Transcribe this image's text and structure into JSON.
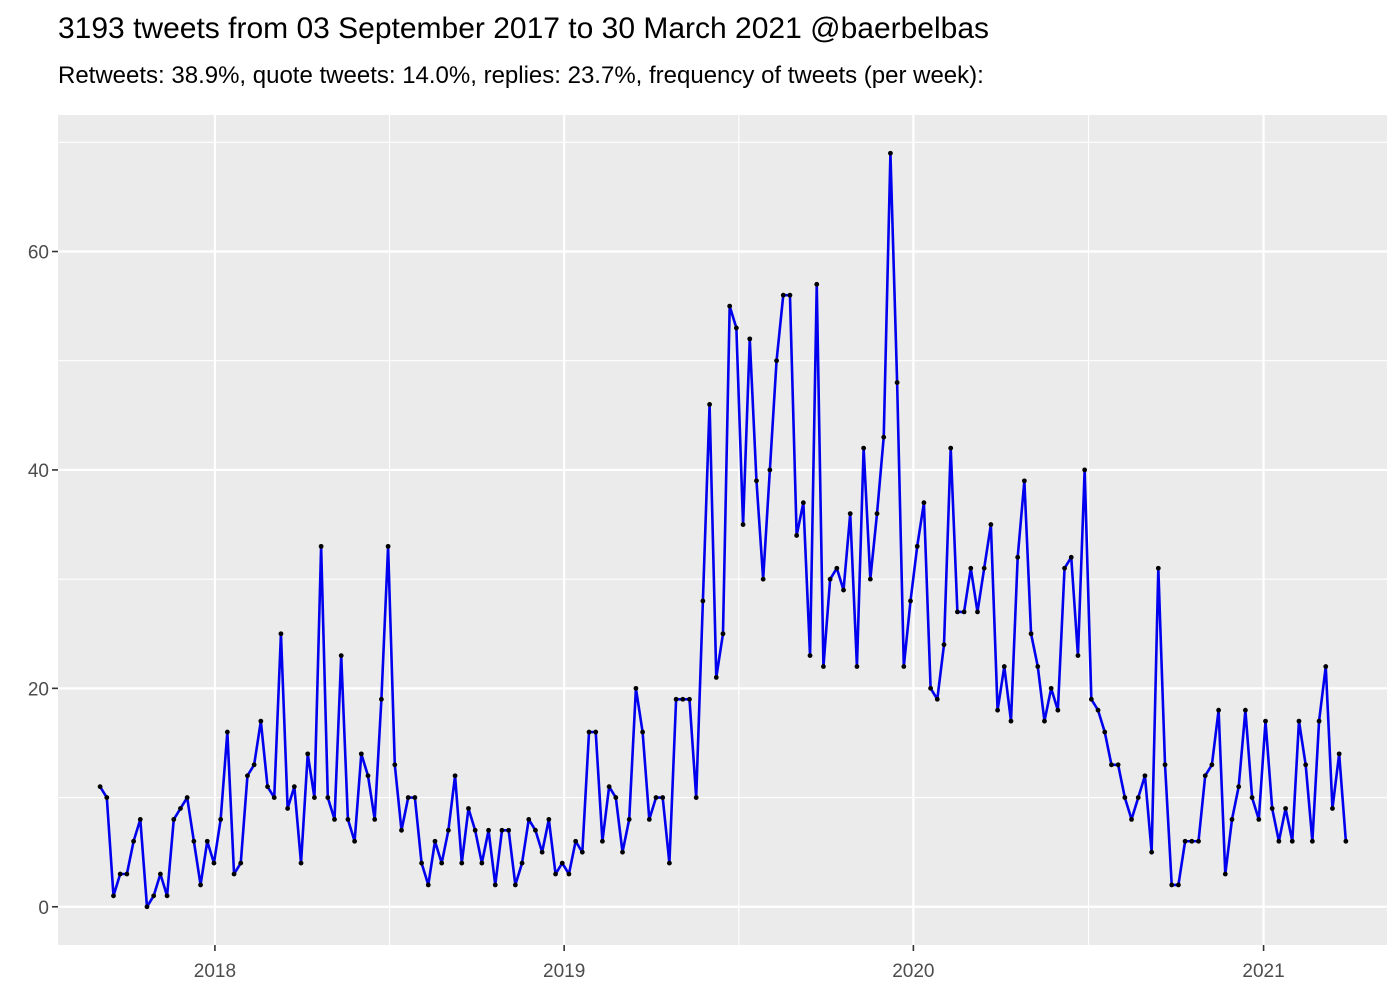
{
  "header": {
    "title": "3193 tweets from 03 September 2017 to 30 March 2021 @baerbelbas",
    "subtitle": "Retweets: 38.9%, quote tweets: 14.0%, replies: 23.7%, frequency of tweets (per week):"
  },
  "chart_data": {
    "type": "line",
    "title": "3193 tweets from 03 September 2017 to 30 March 2021 @baerbelbas",
    "subtitle": "Retweets: 38.9%, quote tweets: 14.0%, replies: 23.7%, frequency of tweets (per week):",
    "xlabel": "",
    "ylabel": "",
    "x_start": "2017-09-03",
    "x_end": "2021-03-30",
    "xlim": [
      "2017-07-21",
      "2021-05-10"
    ],
    "ylim": [
      -3.5,
      72.5
    ],
    "y_ticks": [
      0,
      20,
      40,
      60
    ],
    "x_ticks": [
      {
        "date": "2018-01-01",
        "label": "2018"
      },
      {
        "date": "2019-01-01",
        "label": "2019"
      },
      {
        "date": "2020-01-01",
        "label": "2020"
      },
      {
        "date": "2021-01-01",
        "label": "2021"
      }
    ],
    "grid": true,
    "line_color": "#0000ee",
    "point_color": "#000000",
    "panel_color": "#ebebeb",
    "series": [
      {
        "x": [
          "2017-09-03",
          "2017-09-10",
          "2017-09-17",
          "2017-09-24",
          "2017-10-01",
          "2017-10-08",
          "2017-10-15",
          "2017-10-22",
          "2017-10-29",
          "2017-11-05",
          "2017-11-12",
          "2017-11-19",
          "2017-11-26",
          "2017-12-03",
          "2017-12-10",
          "2017-12-17",
          "2017-12-24",
          "2017-12-31",
          "2018-01-07",
          "2018-01-14",
          "2018-01-21",
          "2018-01-28",
          "2018-02-04",
          "2018-02-11",
          "2018-02-18",
          "2018-02-25",
          "2018-03-04",
          "2018-03-11",
          "2018-03-18",
          "2018-03-25",
          "2018-04-01",
          "2018-04-08",
          "2018-04-15",
          "2018-04-22",
          "2018-04-29",
          "2018-05-06",
          "2018-05-13",
          "2018-05-20",
          "2018-05-27",
          "2018-06-03",
          "2018-06-10",
          "2018-06-17",
          "2018-06-24",
          "2018-07-01",
          "2018-07-08",
          "2018-07-15",
          "2018-07-22",
          "2018-07-29",
          "2018-08-05",
          "2018-08-12",
          "2018-08-19",
          "2018-08-26",
          "2018-09-02",
          "2018-09-09",
          "2018-09-16",
          "2018-09-23",
          "2018-09-30",
          "2018-10-07",
          "2018-10-14",
          "2018-10-21",
          "2018-10-28",
          "2018-11-04",
          "2018-11-11",
          "2018-11-18",
          "2018-11-25",
          "2018-12-02",
          "2018-12-09",
          "2018-12-16",
          "2018-12-23",
          "2018-12-30",
          "2019-01-06",
          "2019-01-13",
          "2019-01-20",
          "2019-01-27",
          "2019-02-03",
          "2019-02-10",
          "2019-02-17",
          "2019-02-24",
          "2019-03-03",
          "2019-03-10",
          "2019-03-17",
          "2019-03-24",
          "2019-03-31",
          "2019-04-07",
          "2019-04-14",
          "2019-04-21",
          "2019-04-28",
          "2019-05-05",
          "2019-05-12",
          "2019-05-19",
          "2019-05-26",
          "2019-06-02",
          "2019-06-09",
          "2019-06-16",
          "2019-06-23",
          "2019-06-30",
          "2019-07-07",
          "2019-07-14",
          "2019-07-21",
          "2019-07-28",
          "2019-08-04",
          "2019-08-11",
          "2019-08-18",
          "2019-08-25",
          "2019-09-01",
          "2019-09-08",
          "2019-09-15",
          "2019-09-22",
          "2019-09-29",
          "2019-10-06",
          "2019-10-13",
          "2019-10-20",
          "2019-10-27",
          "2019-11-03",
          "2019-11-10",
          "2019-11-17",
          "2019-11-24",
          "2019-12-01",
          "2019-12-08",
          "2019-12-15",
          "2019-12-22",
          "2019-12-29",
          "2020-01-05",
          "2020-01-12",
          "2020-01-19",
          "2020-01-26",
          "2020-02-02",
          "2020-02-09",
          "2020-02-16",
          "2020-02-23",
          "2020-03-01",
          "2020-03-08",
          "2020-03-15",
          "2020-03-22",
          "2020-03-29",
          "2020-04-05",
          "2020-04-12",
          "2020-04-19",
          "2020-04-26",
          "2020-05-03",
          "2020-05-10",
          "2020-05-17",
          "2020-05-24",
          "2020-05-31",
          "2020-06-07",
          "2020-06-14",
          "2020-06-21",
          "2020-06-28",
          "2020-07-05",
          "2020-07-12",
          "2020-07-19",
          "2020-07-26",
          "2020-08-02",
          "2020-08-09",
          "2020-08-16",
          "2020-08-23",
          "2020-08-30",
          "2020-09-06",
          "2020-09-13",
          "2020-09-20",
          "2020-09-27",
          "2020-10-04",
          "2020-10-11",
          "2020-10-18",
          "2020-10-25",
          "2020-11-01",
          "2020-11-08",
          "2020-11-15",
          "2020-11-22",
          "2020-11-29",
          "2020-12-06",
          "2020-12-13",
          "2020-12-20",
          "2020-12-27",
          "2021-01-03",
          "2021-01-10",
          "2021-01-17",
          "2021-01-24",
          "2021-01-31",
          "2021-02-07",
          "2021-02-14",
          "2021-02-21",
          "2021-02-28",
          "2021-03-07",
          "2021-03-14",
          "2021-03-21",
          "2021-03-28"
        ],
        "y": [
          11,
          10,
          1,
          3,
          3,
          6,
          8,
          0,
          1,
          3,
          1,
          8,
          9,
          10,
          6,
          2,
          6,
          4,
          8,
          16,
          3,
          4,
          12,
          13,
          17,
          11,
          10,
          25,
          9,
          11,
          4,
          14,
          10,
          33,
          10,
          8,
          23,
          8,
          6,
          14,
          12,
          8,
          19,
          33,
          13,
          7,
          10,
          10,
          4,
          2,
          6,
          4,
          7,
          12,
          4,
          9,
          7,
          4,
          7,
          2,
          7,
          7,
          2,
          4,
          8,
          7,
          5,
          8,
          3,
          4,
          3,
          6,
          5,
          16,
          16,
          6,
          11,
          10,
          5,
          8,
          20,
          16,
          8,
          10,
          10,
          4,
          19,
          19,
          19,
          10,
          28,
          46,
          21,
          25,
          55,
          53,
          35,
          52,
          39,
          30,
          40,
          50,
          56,
          56,
          34,
          37,
          23,
          57,
          22,
          30,
          31,
          29,
          36,
          22,
          42,
          30,
          36,
          43,
          69,
          48,
          22,
          28,
          33,
          37,
          20,
          19,
          24,
          42,
          27,
          27,
          31,
          27,
          31,
          35,
          18,
          22,
          17,
          32,
          39,
          25,
          22,
          17,
          20,
          18,
          31,
          32,
          23,
          40,
          19,
          18,
          16,
          13,
          13,
          10,
          8,
          10,
          12,
          5,
          31,
          13,
          2,
          2,
          6,
          6,
          6,
          12,
          13,
          18,
          3,
          8,
          11,
          18,
          10,
          8,
          17,
          9,
          6,
          9,
          6,
          17,
          13,
          6,
          17,
          22,
          9,
          14,
          6
        ]
      }
    ]
  }
}
